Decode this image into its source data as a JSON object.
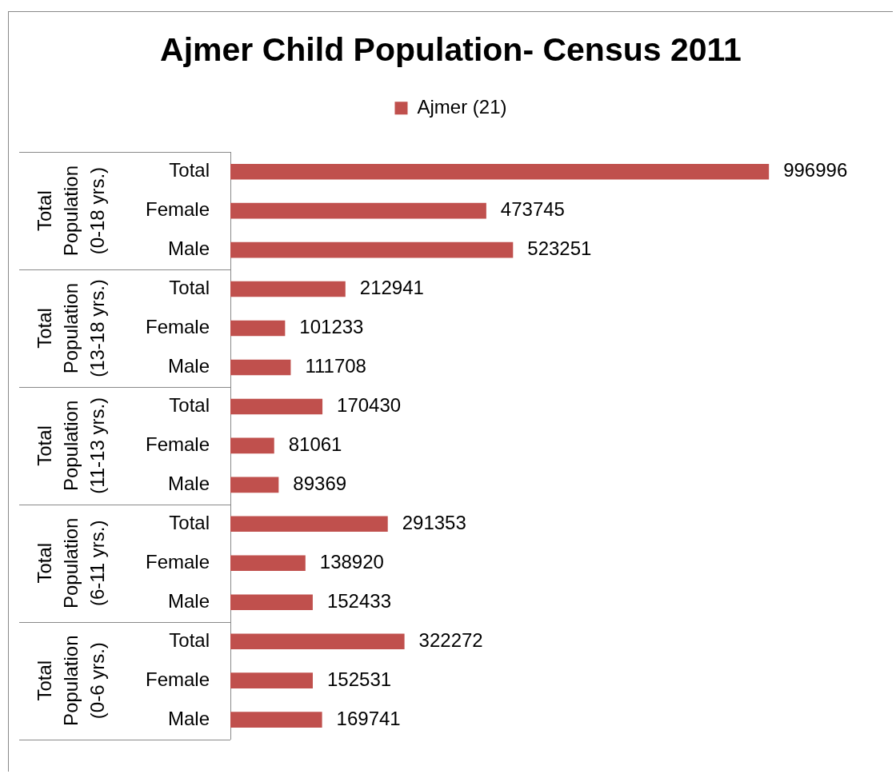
{
  "chart_data": {
    "type": "bar",
    "orientation": "horizontal",
    "title": "Ajmer Child Population- Census 2011",
    "categories": [
      "Total",
      "Female",
      "Male",
      "Total",
      "Female",
      "Male",
      "Total",
      "Female",
      "Male",
      "Total",
      "Female",
      "Male",
      "Total",
      "Female",
      "Male"
    ],
    "series": [
      {
        "name": "Ajmer (21)",
        "color": "#c0504d",
        "values": [
          996996,
          473745,
          523251,
          212941,
          101233,
          111708,
          170430,
          81061,
          89369,
          291353,
          138920,
          152433,
          322272,
          152531,
          169741
        ]
      }
    ],
    "data_labels": true,
    "legend": "top",
    "annotations": [
      "Total Population (0-18 yrs.)",
      "Total Population (13-18 yrs.)",
      "Total Population (11-13 yrs.)",
      "Total Population (6-11 yrs.)",
      "Total Population (0-6 yrs.)"
    ]
  }
}
